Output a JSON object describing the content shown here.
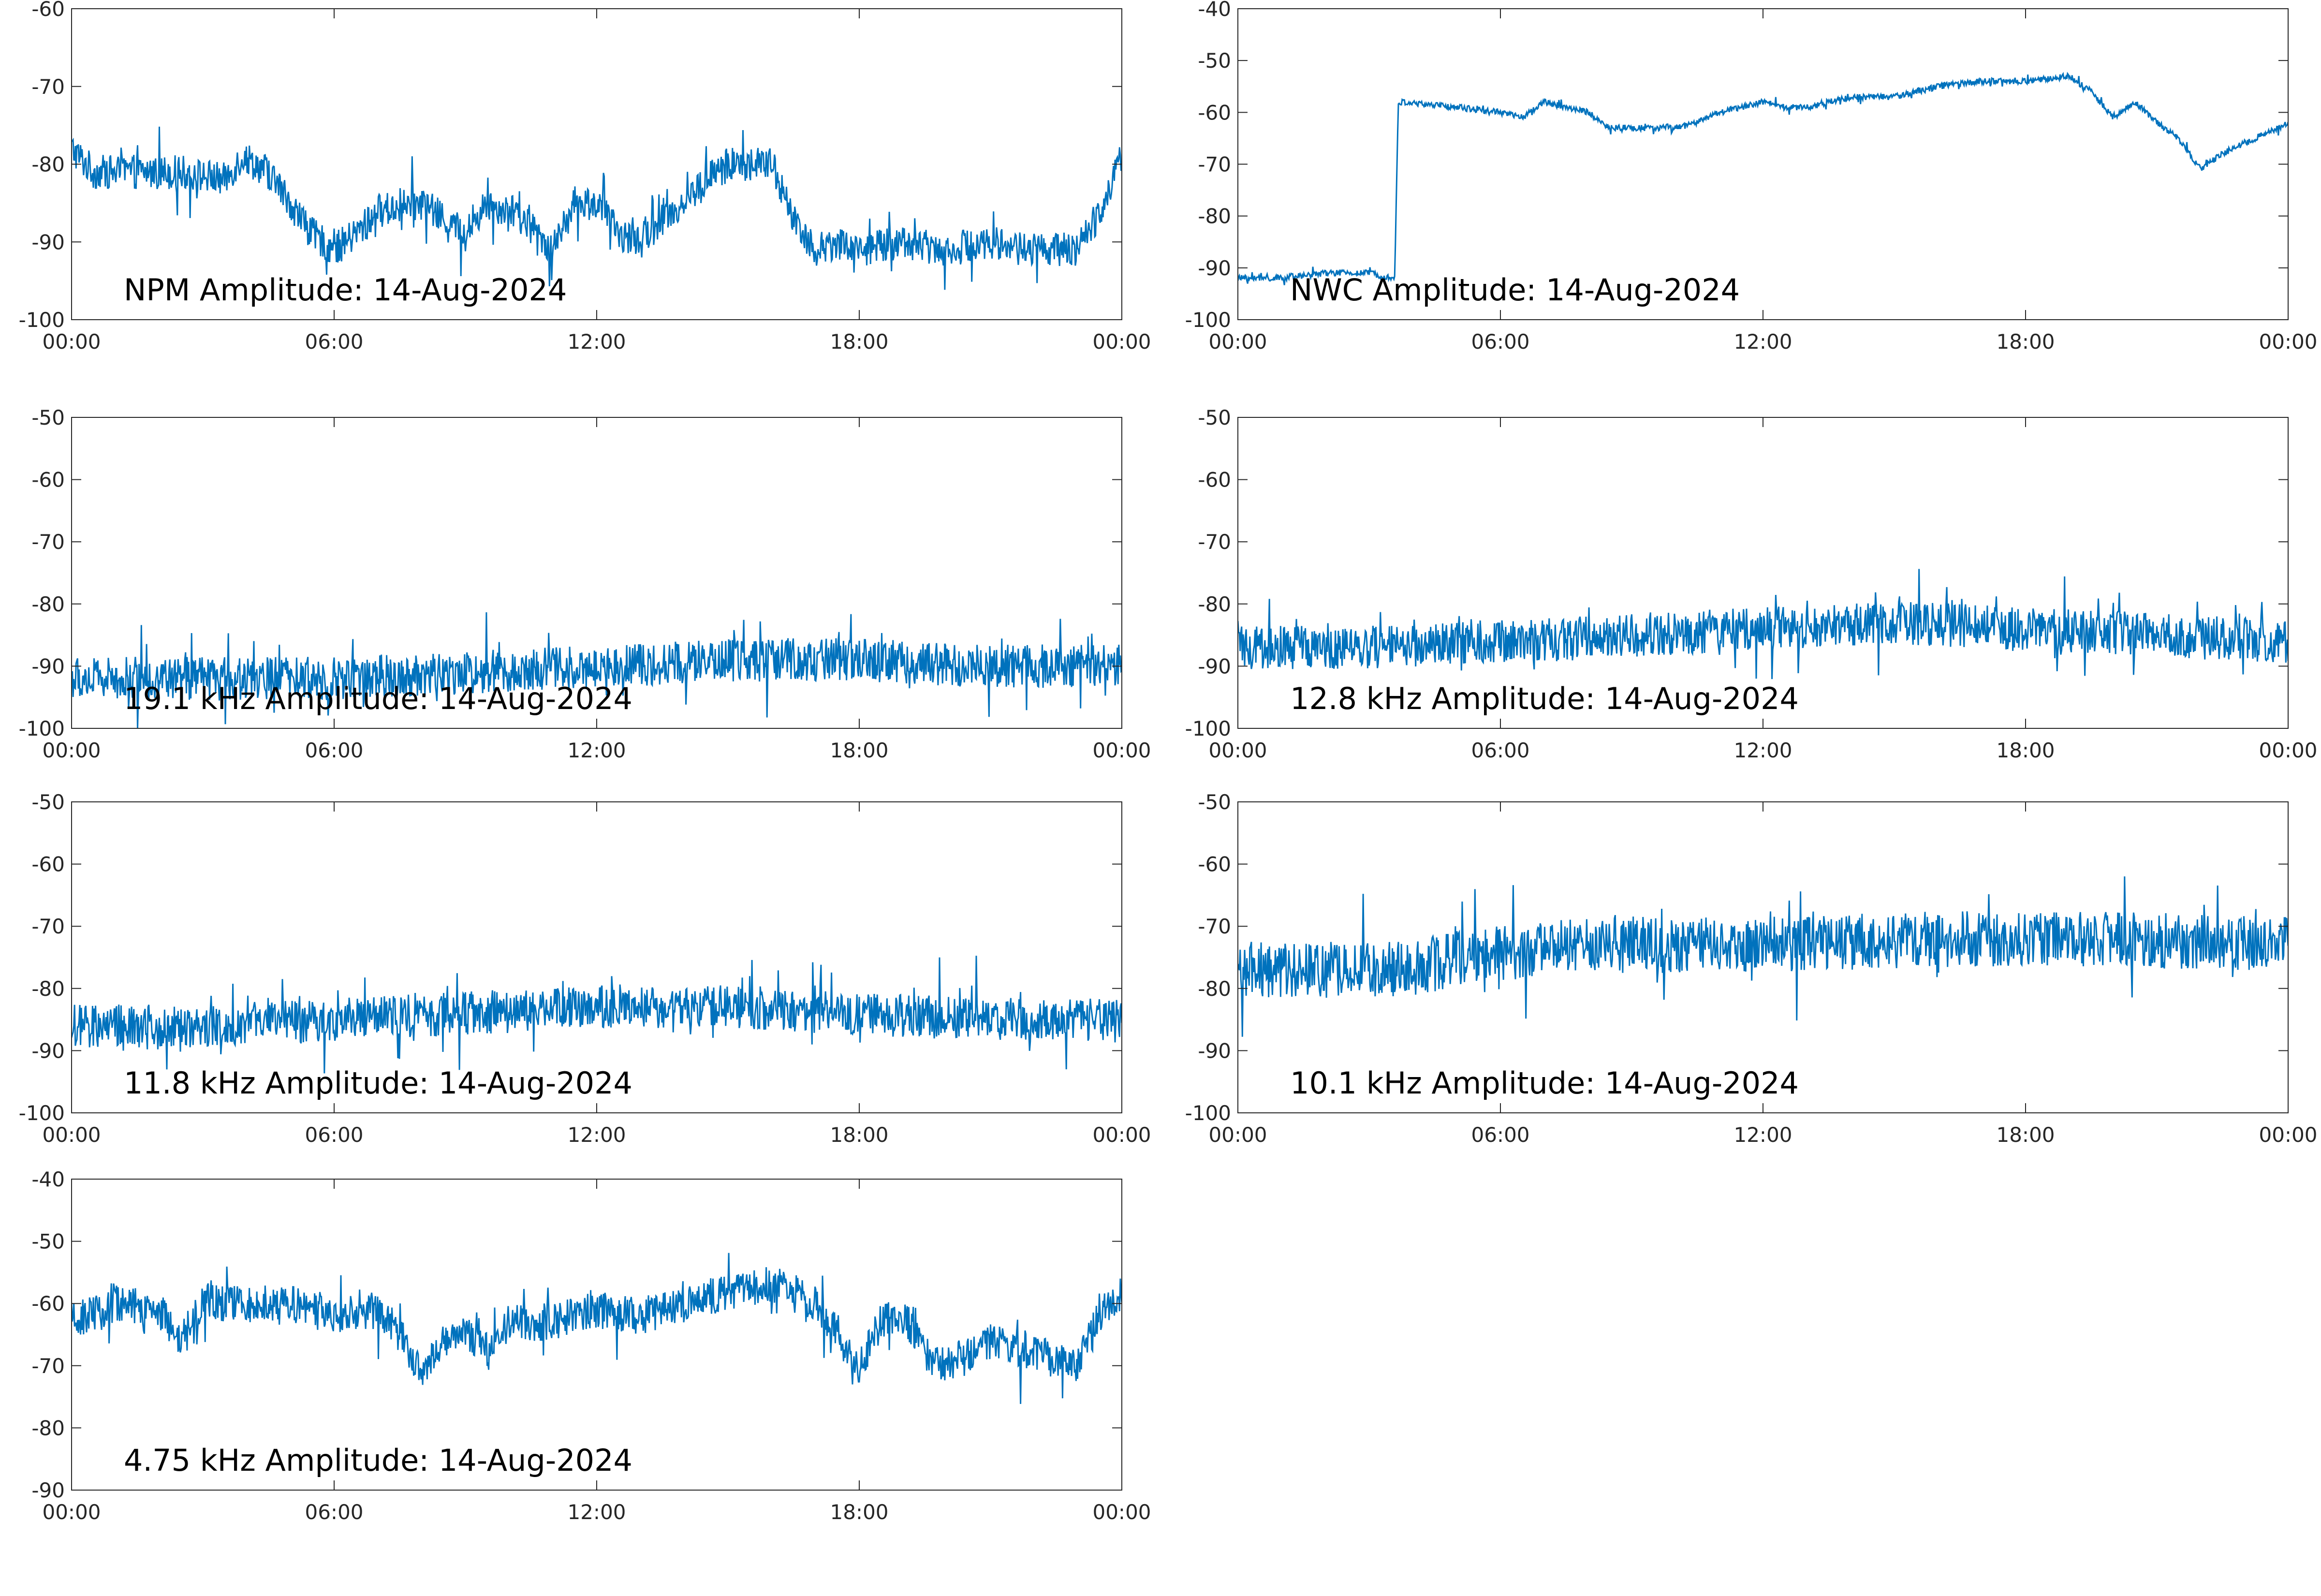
{
  "chart_data": [
    {
      "type": "line",
      "title": "NPM Amplitude: 14-Aug-2024",
      "xlabel": "",
      "ylabel": "",
      "xlim": [
        "00:00",
        "24:00"
      ],
      "ylim": [
        -100,
        -60
      ],
      "xticks": [
        "00:00",
        "06:00",
        "12:00",
        "18:00",
        "00:00"
      ],
      "yticks": [
        -100,
        -90,
        -80,
        -70,
        -60
      ],
      "grid": false,
      "color": "#0072BD",
      "noise": 2.2,
      "series": [
        {
          "points": [
            [
              "00:00",
              -78
            ],
            [
              "00:30",
              -81
            ],
            [
              "01:30",
              -81
            ],
            [
              "02:30",
              -81
            ],
            [
              "03:30",
              -82
            ],
            [
              "03:55",
              -79
            ],
            [
              "04:30",
              -81
            ],
            [
              "05:00",
              -85
            ],
            [
              "05:30",
              -89
            ],
            [
              "06:00",
              -91
            ],
            [
              "06:30",
              -89
            ],
            [
              "07:00",
              -86
            ],
            [
              "08:00",
              -85
            ],
            [
              "08:30",
              -87
            ],
            [
              "09:00",
              -89
            ],
            [
              "09:30",
              -85
            ],
            [
              "10:00",
              -86
            ],
            [
              "10:30",
              -88
            ],
            [
              "11:00",
              -91
            ],
            [
              "11:30",
              -85
            ],
            [
              "12:00",
              -85
            ],
            [
              "12:30",
              -89
            ],
            [
              "13:00",
              -90
            ],
            [
              "13:30",
              -87
            ],
            [
              "14:00",
              -85
            ],
            [
              "14:30",
              -82
            ],
            [
              "15:00",
              -80
            ],
            [
              "15:30",
              -80
            ],
            [
              "16:00",
              -80
            ],
            [
              "16:30",
              -87
            ],
            [
              "17:00",
              -91
            ],
            [
              "17:30",
              -90
            ],
            [
              "18:00",
              -91
            ],
            [
              "19:00",
              -90
            ],
            [
              "20:00",
              -91
            ],
            [
              "21:00",
              -90
            ],
            [
              "22:00",
              -91
            ],
            [
              "23:00",
              -91
            ],
            [
              "23:30",
              -86
            ],
            [
              "24:00",
              -79
            ]
          ]
        }
      ]
    },
    {
      "type": "line",
      "title": "NWC Amplitude: 14-Aug-2024",
      "xlabel": "",
      "ylabel": "",
      "xlim": [
        "00:00",
        "24:00"
      ],
      "ylim": [
        -100,
        -40
      ],
      "xticks": [
        "00:00",
        "06:00",
        "12:00",
        "18:00",
        "00:00"
      ],
      "yticks": [
        -100,
        -90,
        -80,
        -70,
        -60,
        -50,
        -40
      ],
      "grid": false,
      "color": "#0072BD",
      "noise": 0.6,
      "series": [
        {
          "points": [
            [
              "00:00",
              -92
            ],
            [
              "01:00",
              -92
            ],
            [
              "02:00",
              -91
            ],
            [
              "03:00",
              -91
            ],
            [
              "03:35",
              -92
            ],
            [
              "03:40",
              -58
            ],
            [
              "05:00",
              -59
            ],
            [
              "06:00",
              -60
            ],
            [
              "06:30",
              -61
            ],
            [
              "07:00",
              -58
            ],
            [
              "08:00",
              -60
            ],
            [
              "08:30",
              -63
            ],
            [
              "09:00",
              -63
            ],
            [
              "10:00",
              -63
            ],
            [
              "10:30",
              -62
            ],
            [
              "11:00",
              -60
            ],
            [
              "12:00",
              -58
            ],
            [
              "12:30",
              -59
            ],
            [
              "13:00",
              -59
            ],
            [
              "14:00",
              -57
            ],
            [
              "15:00",
              -57
            ],
            [
              "16:00",
              -55
            ],
            [
              "17:00",
              -54
            ],
            [
              "18:00",
              -54
            ],
            [
              "19:00",
              -53
            ],
            [
              "19:30",
              -56
            ],
            [
              "20:00",
              -61
            ],
            [
              "20:30",
              -58
            ],
            [
              "21:00",
              -62
            ],
            [
              "21:30",
              -65
            ],
            [
              "22:00",
              -71
            ],
            [
              "22:30",
              -68
            ],
            [
              "23:00",
              -66
            ],
            [
              "24:00",
              -62
            ]
          ]
        }
      ]
    },
    {
      "type": "line",
      "title": "19.1 kHz Amplitude: 14-Aug-2024",
      "xlabel": "",
      "ylabel": "",
      "xlim": [
        "00:00",
        "24:00"
      ],
      "ylim": [
        -100,
        -50
      ],
      "xticks": [
        "00:00",
        "06:00",
        "12:00",
        "18:00",
        "00:00"
      ],
      "yticks": [
        -100,
        -90,
        -80,
        -70,
        -60,
        -50
      ],
      "grid": false,
      "color": "#0072BD",
      "noise": 3.5,
      "series": [
        {
          "points": [
            [
              "00:00",
              -92
            ],
            [
              "03:00",
              -92
            ],
            [
              "06:00",
              -92
            ],
            [
              "09:00",
              -91
            ],
            [
              "12:00",
              -90
            ],
            [
              "15:00",
              -89
            ],
            [
              "18:00",
              -89
            ],
            [
              "21:00",
              -90
            ],
            [
              "24:00",
              -90
            ]
          ]
        }
      ]
    },
    {
      "type": "line",
      "title": "12.8 kHz Amplitude: 14-Aug-2024",
      "xlabel": "",
      "ylabel": "",
      "xlim": [
        "00:00",
        "24:00"
      ],
      "ylim": [
        -100,
        -50
      ],
      "xticks": [
        "00:00",
        "06:00",
        "12:00",
        "18:00",
        "00:00"
      ],
      "yticks": [
        -100,
        -90,
        -80,
        -70,
        -60,
        -50
      ],
      "grid": false,
      "color": "#0072BD",
      "noise": 3.5,
      "series": [
        {
          "points": [
            [
              "00:00",
              -87
            ],
            [
              "03:00",
              -87
            ],
            [
              "06:00",
              -86
            ],
            [
              "09:00",
              -85
            ],
            [
              "12:00",
              -84
            ],
            [
              "15:00",
              -83
            ],
            [
              "18:00",
              -84
            ],
            [
              "21:00",
              -85
            ],
            [
              "24:00",
              -86
            ]
          ]
        }
      ]
    },
    {
      "type": "line",
      "title": "11.8 kHz Amplitude: 14-Aug-2024",
      "xlabel": "",
      "ylabel": "",
      "xlim": [
        "00:00",
        "24:00"
      ],
      "ylim": [
        -100,
        -50
      ],
      "xticks": [
        "00:00",
        "06:00",
        "12:00",
        "18:00",
        "00:00"
      ],
      "yticks": [
        -100,
        -90,
        -80,
        -70,
        -60,
        -50
      ],
      "grid": false,
      "color": "#0072BD",
      "noise": 3.5,
      "series": [
        {
          "points": [
            [
              "00:00",
              -86
            ],
            [
              "03:00",
              -86
            ],
            [
              "06:00",
              -85
            ],
            [
              "09:00",
              -84
            ],
            [
              "12:00",
              -83
            ],
            [
              "15:00",
              -83
            ],
            [
              "18:00",
              -84
            ],
            [
              "21:00",
              -85
            ],
            [
              "24:00",
              -85
            ]
          ]
        }
      ]
    },
    {
      "type": "line",
      "title": "10.1 kHz Amplitude: 14-Aug-2024",
      "xlabel": "",
      "ylabel": "",
      "xlim": [
        "00:00",
        "24:00"
      ],
      "ylim": [
        -100,
        -50
      ],
      "xticks": [
        "00:00",
        "06:00",
        "12:00",
        "18:00",
        "00:00"
      ],
      "yticks": [
        -100,
        -90,
        -80,
        -70,
        -60,
        -50
      ],
      "grid": false,
      "color": "#0072BD",
      "noise": 4.5,
      "series": [
        {
          "points": [
            [
              "00:00",
              -77
            ],
            [
              "02:00",
              -77
            ],
            [
              "04:00",
              -77
            ],
            [
              "05:00",
              -75
            ],
            [
              "08:00",
              -73
            ],
            [
              "12:00",
              -73
            ],
            [
              "16:00",
              -72
            ],
            [
              "20:00",
              -72
            ],
            [
              "24:00",
              -73
            ]
          ]
        }
      ]
    },
    {
      "type": "line",
      "title": "4.75 kHz Amplitude: 14-Aug-2024",
      "xlabel": "",
      "ylabel": "",
      "xlim": [
        "00:00",
        "24:00"
      ],
      "ylim": [
        -90,
        -40
      ],
      "xticks": [
        "00:00",
        "06:00",
        "12:00",
        "18:00",
        "00:00"
      ],
      "yticks": [
        -90,
        -80,
        -70,
        -60,
        -50,
        -40
      ],
      "grid": false,
      "color": "#0072BD",
      "noise": 3.0,
      "series": [
        {
          "points": [
            [
              "00:00",
              -63
            ],
            [
              "01:00",
              -60
            ],
            [
              "02:00",
              -61
            ],
            [
              "02:30",
              -66
            ],
            [
              "03:00",
              -60
            ],
            [
              "05:00",
              -60
            ],
            [
              "06:00",
              -62
            ],
            [
              "07:00",
              -61
            ],
            [
              "07:30",
              -65
            ],
            [
              "08:00",
              -72
            ],
            [
              "08:30",
              -66
            ],
            [
              "09:00",
              -64
            ],
            [
              "09:30",
              -68
            ],
            [
              "10:00",
              -63
            ],
            [
              "11:00",
              -63
            ],
            [
              "12:00",
              -61
            ],
            [
              "13:00",
              -62
            ],
            [
              "14:00",
              -60
            ],
            [
              "15:00",
              -58
            ],
            [
              "16:00",
              -57
            ],
            [
              "16:30",
              -58
            ],
            [
              "17:00",
              -60
            ],
            [
              "17:30",
              -65
            ],
            [
              "18:00",
              -70
            ],
            [
              "18:30",
              -63
            ],
            [
              "19:00",
              -62
            ],
            [
              "19:30",
              -68
            ],
            [
              "20:00",
              -70
            ],
            [
              "21:00",
              -66
            ],
            [
              "22:00",
              -68
            ],
            [
              "23:00",
              -70
            ],
            [
              "23:30",
              -62
            ],
            [
              "24:00",
              -58
            ]
          ]
        }
      ]
    }
  ]
}
